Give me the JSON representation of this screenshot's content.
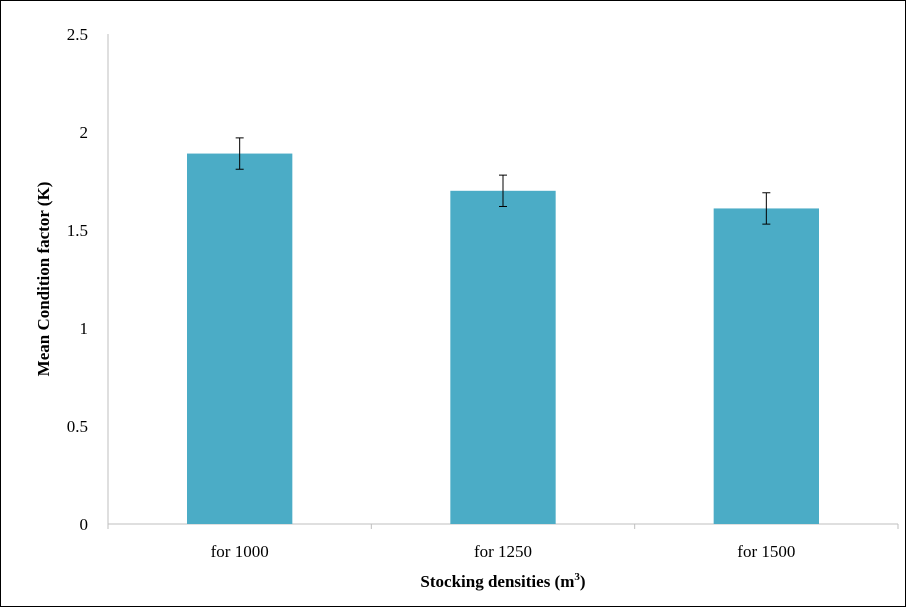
{
  "chart_data": {
    "type": "bar",
    "categories": [
      "for 1000",
      "for 1250",
      "for 1500"
    ],
    "series": [
      {
        "values": [
          1.89,
          1.7,
          1.61
        ],
        "error": [
          0.08,
          0.08,
          0.08
        ],
        "color": "#4bacc6"
      }
    ],
    "xlabel": "Stocking densities (m",
    "xlabel_sup": "3",
    "xlabel_end": ")",
    "ylabel": "Mean Condition factor (K)",
    "ylim": [
      0,
      2.5
    ],
    "yticks": [
      0,
      0.5,
      1,
      1.5,
      2,
      2.5
    ],
    "ytick_labels": [
      "0",
      "0.5",
      "1",
      "1.5",
      "2",
      "2.5"
    ],
    "grid": false,
    "legend": "none"
  }
}
